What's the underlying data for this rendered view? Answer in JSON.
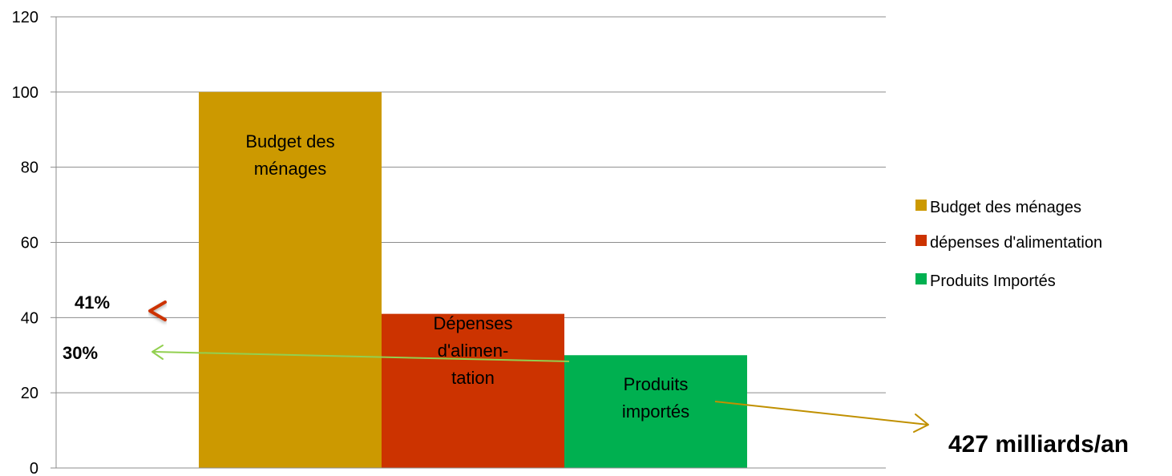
{
  "chart_data": {
    "type": "bar",
    "ylim": [
      0,
      120
    ],
    "yticks": [
      0,
      20,
      40,
      60,
      80,
      100,
      120
    ],
    "grid": true,
    "legend_position": "right",
    "series": [
      {
        "name": "Budget des ménages",
        "value": 100,
        "color": "#cc9900",
        "label_lines": [
          "Budget des",
          "ménages"
        ]
      },
      {
        "name": "dépenses d'alimentation",
        "value": 41,
        "color": "#cc3300",
        "label_lines": [
          "Dépenses",
          "d'alimen-",
          "tation"
        ]
      },
      {
        "name": "Produits Importés",
        "value": 30,
        "color": "#00b050",
        "label_lines": [
          "Produits",
          "importés"
        ]
      }
    ],
    "annotations": {
      "pct_41": {
        "text": "41%",
        "value": 41,
        "color": "#cc3300"
      },
      "pct_30": {
        "text": "30%",
        "value": 30,
        "color": "#92d050"
      },
      "amount": {
        "text": "427 milliards/an",
        "color": "#c09000"
      }
    }
  }
}
